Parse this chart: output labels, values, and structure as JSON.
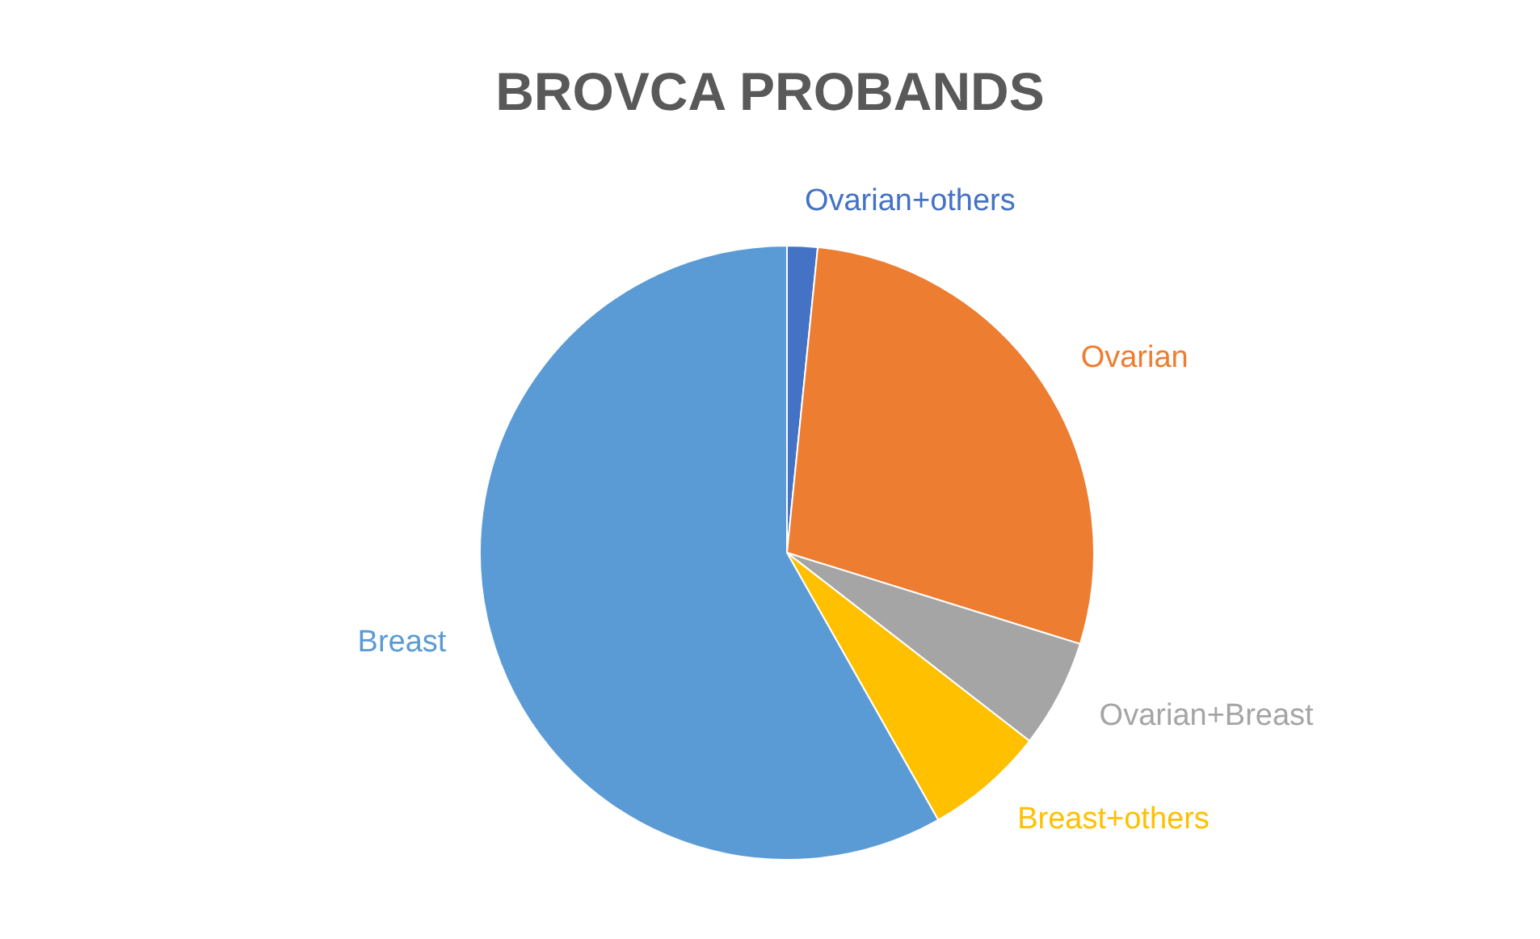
{
  "chart_data": {
    "type": "pie",
    "title": "BROVCA PROBANDS",
    "categories": [
      "Ovarian+others",
      "Ovarian",
      "Ovarian+Breast",
      "Breast+others",
      "Breast"
    ],
    "values": [
      1.6,
      28.2,
      5.7,
      6.3,
      58.2
    ],
    "colors": [
      "#4472c4",
      "#ed7d31",
      "#a5a5a5",
      "#ffc000",
      "#5b9bd5"
    ],
    "legend": false
  }
}
